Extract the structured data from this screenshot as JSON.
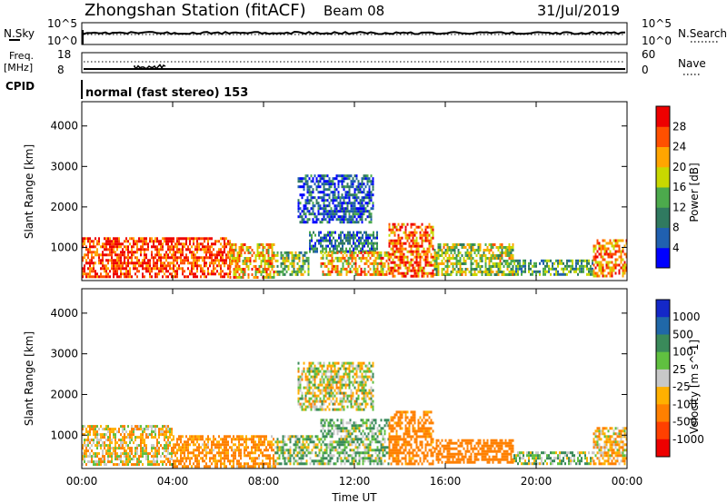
{
  "header": {
    "station": "Zhongshan Station (fitACF)",
    "beam": "Beam 08",
    "date": "31/Jul/2019"
  },
  "summary": {
    "nsky_label": "N.Sky",
    "nsky_top": "10^5",
    "nsky_bottom": "10^0",
    "nsearch_label": "N.Search",
    "nsearch_top": "10^5",
    "nsearch_bottom": "10^0",
    "freq_label_1": "Freq.",
    "freq_label_2": "[MHz]",
    "freq_top": "18",
    "freq_bottom": "8",
    "nave_label": "Nave",
    "nave_top": "60",
    "nave_bottom": "0",
    "cpid_label": "CPID",
    "cpid_text": "normal (fast stereo) 153"
  },
  "colors": {
    "power": [
      "#0000ff",
      "#2060b0",
      "#307a60",
      "#4caa4c",
      "#c8d800",
      "#ffa500",
      "#ff5000",
      "#ee0000"
    ],
    "velocity": [
      "#1428c8",
      "#2068a8",
      "#3a8a5a",
      "#60c040",
      "#c8c8c8",
      "#ffb000",
      "#ff8000",
      "#ff4000",
      "#ee0000"
    ]
  },
  "chart_data": [
    {
      "type": "heatmap",
      "name": "power-panel",
      "xlabel": "",
      "ylabel": "Slant Range [km]",
      "x_ticks": [
        "00:00",
        "04:00",
        "08:00",
        "12:00",
        "16:00",
        "20:00",
        "00:00"
      ],
      "y_ticks": [
        "1000",
        "2000",
        "3000",
        "4000"
      ],
      "ylim": [
        180,
        4600
      ],
      "xlim_hours": [
        0,
        24
      ],
      "colorbar": {
        "label": "Power [dB]",
        "ticks": [
          "4",
          "8",
          "12",
          "16",
          "20",
          "24",
          "28"
        ],
        "range": [
          0,
          30
        ]
      },
      "regions": [
        {
          "t0": 0.0,
          "t1": 6.5,
          "r0": 250,
          "r1": 1250,
          "value": 26
        },
        {
          "t0": 6.5,
          "t1": 8.5,
          "r0": 250,
          "r1": 1100,
          "value": 20
        },
        {
          "t0": 8.5,
          "t1": 10.0,
          "r0": 300,
          "r1": 900,
          "value": 14
        },
        {
          "t0": 9.5,
          "t1": 12.8,
          "r0": 1600,
          "r1": 2800,
          "value": 6
        },
        {
          "t0": 10.0,
          "t1": 13.0,
          "r0": 900,
          "r1": 1400,
          "value": 8
        },
        {
          "t0": 10.5,
          "t1": 13.5,
          "r0": 300,
          "r1": 900,
          "value": 20
        },
        {
          "t0": 13.5,
          "t1": 15.5,
          "r0": 300,
          "r1": 1600,
          "value": 24
        },
        {
          "t0": 15.5,
          "t1": 19.0,
          "r0": 300,
          "r1": 1100,
          "value": 16
        },
        {
          "t0": 19.0,
          "t1": 22.5,
          "r0": 300,
          "r1": 700,
          "value": 12
        },
        {
          "t0": 22.5,
          "t1": 24.0,
          "r0": 300,
          "r1": 1200,
          "value": 22
        }
      ]
    },
    {
      "type": "heatmap",
      "name": "velocity-panel",
      "xlabel": "Time UT",
      "ylabel": "Slant Range [km]",
      "x_ticks": [
        "00:00",
        "04:00",
        "08:00",
        "12:00",
        "16:00",
        "20:00",
        "00:00"
      ],
      "y_ticks": [
        "1000",
        "2000",
        "3000",
        "4000"
      ],
      "ylim": [
        180,
        4600
      ],
      "xlim_hours": [
        0,
        24
      ],
      "colorbar": {
        "label": "Velocity [m s^-1]",
        "ticks": [
          "1000",
          "500",
          "100",
          "25",
          "-25",
          "-100",
          "-500",
          "-1000"
        ]
      },
      "regions": [
        {
          "t0": 0.0,
          "t1": 4.0,
          "r0": 250,
          "r1": 1250,
          "value": -50
        },
        {
          "t0": 4.0,
          "t1": 8.5,
          "r0": 250,
          "r1": 1000,
          "value": -150
        },
        {
          "t0": 8.5,
          "t1": 10.5,
          "r0": 300,
          "r1": 1000,
          "value": 60
        },
        {
          "t0": 9.5,
          "t1": 12.8,
          "r0": 1600,
          "r1": 2800,
          "value": 0
        },
        {
          "t0": 10.5,
          "t1": 13.5,
          "r0": 300,
          "r1": 1400,
          "value": 80
        },
        {
          "t0": 13.5,
          "t1": 15.5,
          "r0": 300,
          "r1": 1600,
          "value": -200
        },
        {
          "t0": 15.5,
          "t1": 19.0,
          "r0": 300,
          "r1": 900,
          "value": -300
        },
        {
          "t0": 19.0,
          "t1": 22.5,
          "r0": 300,
          "r1": 600,
          "value": 50
        },
        {
          "t0": 22.5,
          "t1": 24.0,
          "r0": 300,
          "r1": 1200,
          "value": -80
        }
      ]
    }
  ]
}
